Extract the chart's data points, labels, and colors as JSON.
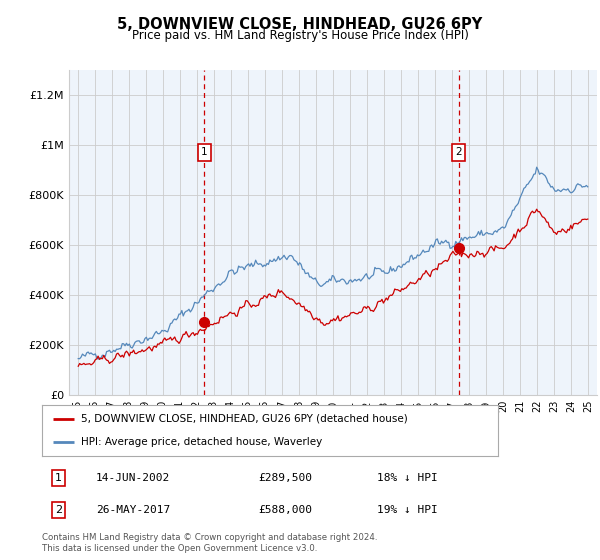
{
  "title": "5, DOWNVIEW CLOSE, HINDHEAD, GU26 6PY",
  "subtitle": "Price paid vs. HM Land Registry's House Price Index (HPI)",
  "ylabel_ticks": [
    "£0",
    "£200K",
    "£400K",
    "£600K",
    "£800K",
    "£1M",
    "£1.2M"
  ],
  "ytick_values": [
    0,
    200000,
    400000,
    600000,
    800000,
    1000000,
    1200000
  ],
  "ylim": [
    0,
    1300000
  ],
  "xlim_start": 1994.5,
  "xlim_end": 2025.5,
  "sale1_x": 2002.45,
  "sale1_y": 289500,
  "sale2_x": 2017.38,
  "sale2_y": 588000,
  "sale1_date": "14-JUN-2002",
  "sale1_price": "£289,500",
  "sale1_hpi": "18% ↓ HPI",
  "sale2_date": "26-MAY-2017",
  "sale2_price": "£588,000",
  "sale2_hpi": "19% ↓ HPI",
  "red_line_color": "#cc0000",
  "blue_line_color": "#5588bb",
  "fill_color": "#ddeeff",
  "grid_color": "#cccccc",
  "background_color": "#ffffff",
  "chart_bg_color": "#eef4fb",
  "legend_red_label": "5, DOWNVIEW CLOSE, HINDHEAD, GU26 6PY (detached house)",
  "legend_blue_label": "HPI: Average price, detached house, Waverley",
  "footnote": "Contains HM Land Registry data © Crown copyright and database right 2024.\nThis data is licensed under the Open Government Licence v3.0."
}
